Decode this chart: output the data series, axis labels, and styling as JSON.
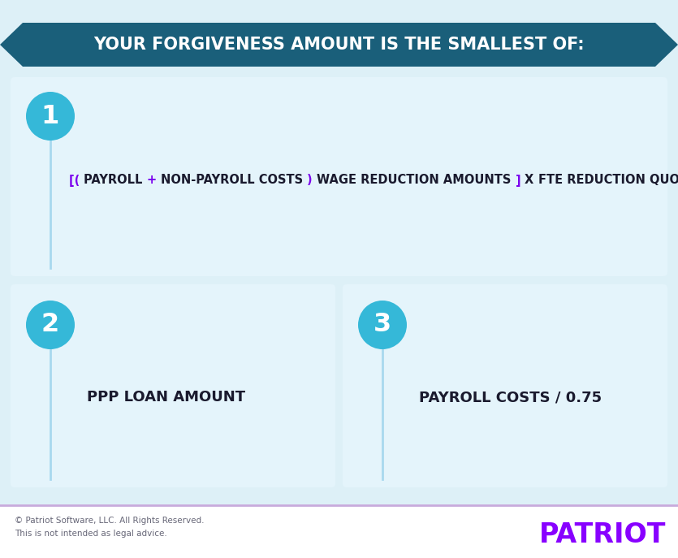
{
  "bg_color": "#ddf0f7",
  "footer_bg": "#ffffff",
  "box_bg": "#e4f4fb",
  "banner_color": "#1a5f7a",
  "banner_text": "YOUR FORGIVENESS AMOUNT IS THE SMALLEST OF:",
  "banner_text_color": "#ffffff",
  "circle_color": "#35b8d8",
  "circle_text_color": "#ffffff",
  "line_color": "#a8d8ee",
  "formula_bracket_color": "#7b00ee",
  "formula_main_color": "#1a1a2e",
  "label2_text": "PPP LOAN AMOUNT",
  "label3_text": "PAYROLL COSTS / 0.75",
  "footer_line_color": "#c8aadc",
  "footer_text1": "© Patriot Software, LLC. All Rights Reserved.",
  "footer_text2": "This is not intended as legal advice.",
  "patriot_text": "PATRIOT",
  "patriot_color": "#8800ff",
  "dark_text_color": "#1a1a2e",
  "formula_parts": [
    {
      "text": "[( ",
      "color": "#7b00ee"
    },
    {
      "text": "PAYROLL ",
      "color": "#1a1a2e"
    },
    {
      "text": "+ ",
      "color": "#7b00ee"
    },
    {
      "text": "NON-PAYROLL COSTS ",
      "color": "#1a1a2e"
    },
    {
      "text": ") ",
      "color": "#7b00ee"
    },
    {
      "text": "WAGE REDUCTION AMOUNTS ",
      "color": "#1a1a2e"
    },
    {
      "text": "] ",
      "color": "#7b00ee"
    },
    {
      "text": "X ",
      "color": "#1a1a2e"
    },
    {
      "text": "FTE REDUCTION QUOTIENT",
      "color": "#1a1a2e"
    }
  ]
}
